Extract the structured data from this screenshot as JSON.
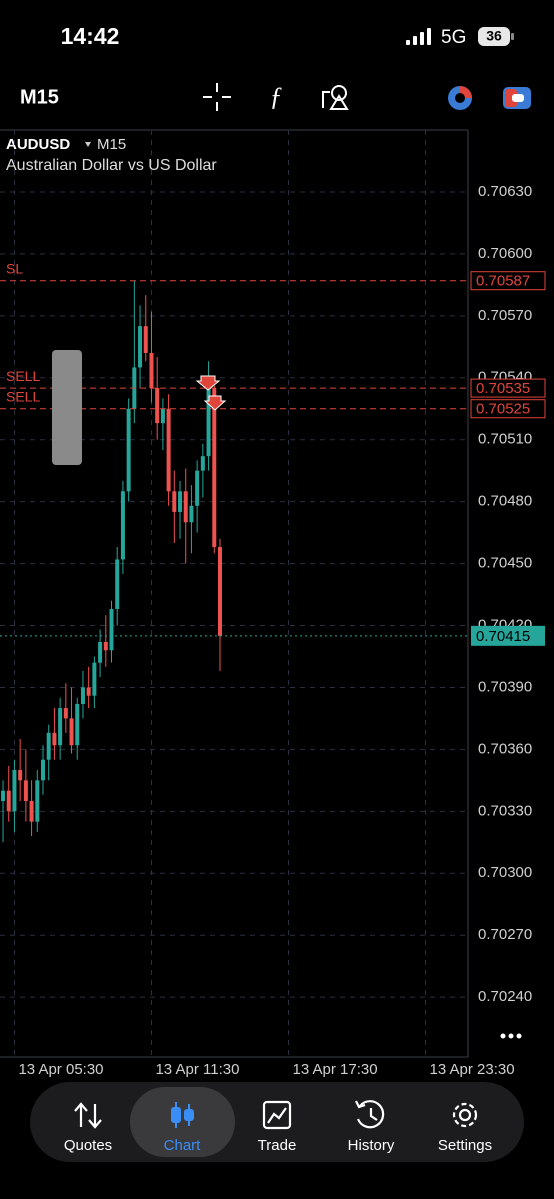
{
  "status_bar": {
    "time": "14:42",
    "network": "5G",
    "battery": "36"
  },
  "toolbar": {
    "timeframe": "M15"
  },
  "chart_data": {
    "type": "candlestick",
    "symbol": "AUDUSD",
    "timeframe": "M15",
    "description": "Australian Dollar vs US Dollar",
    "open": [
      0.70335,
      0.7034,
      0.7033,
      0.7035,
      0.70345,
      0.70335,
      0.70325,
      0.70345,
      0.70355,
      0.70368,
      0.70362,
      0.7038,
      0.70375,
      0.70362,
      0.70382,
      0.7039,
      0.70386,
      0.70402,
      0.70412,
      0.70408,
      0.70428,
      0.70452,
      0.70485,
      0.70525,
      0.70545,
      0.70565,
      0.70552,
      0.70535,
      0.70518,
      0.70525,
      0.70485,
      0.70475,
      0.70485,
      0.7047,
      0.70478,
      0.70495,
      0.70502,
      0.70535,
      0.70458
    ],
    "high": [
      0.70345,
      0.70352,
      0.70355,
      0.70365,
      0.7036,
      0.70345,
      0.7035,
      0.70362,
      0.70372,
      0.7038,
      0.70385,
      0.70392,
      0.7039,
      0.70385,
      0.70398,
      0.704,
      0.70405,
      0.70418,
      0.70425,
      0.70432,
      0.70458,
      0.7049,
      0.7053,
      0.70587,
      0.70575,
      0.7058,
      0.70572,
      0.7055,
      0.7053,
      0.70532,
      0.70495,
      0.7049,
      0.70496,
      0.70488,
      0.705,
      0.70508,
      0.70548,
      0.7054,
      0.70462
    ],
    "low": [
      0.70315,
      0.70325,
      0.7032,
      0.70335,
      0.70325,
      0.70318,
      0.7032,
      0.70338,
      0.70345,
      0.70355,
      0.70355,
      0.70368,
      0.70358,
      0.70355,
      0.70375,
      0.7038,
      0.7038,
      0.70395,
      0.704,
      0.70402,
      0.7042,
      0.70445,
      0.7048,
      0.70518,
      0.70535,
      0.70548,
      0.70528,
      0.7051,
      0.70505,
      0.70478,
      0.7046,
      0.70462,
      0.7045,
      0.70455,
      0.70465,
      0.70482,
      0.70495,
      0.70455,
      0.70398
    ],
    "close": [
      0.7034,
      0.7033,
      0.7035,
      0.70345,
      0.70335,
      0.70325,
      0.70345,
      0.70355,
      0.70368,
      0.70362,
      0.7038,
      0.70375,
      0.70362,
      0.70382,
      0.7039,
      0.70386,
      0.70402,
      0.70412,
      0.70408,
      0.70428,
      0.70452,
      0.70485,
      0.70525,
      0.70545,
      0.70565,
      0.70552,
      0.70535,
      0.70518,
      0.70525,
      0.70485,
      0.70475,
      0.70485,
      0.7047,
      0.70478,
      0.70495,
      0.70502,
      0.70535,
      0.70458,
      0.70415
    ],
    "up_color": "#26a69a",
    "down_color": "#ef5350",
    "xlim": [
      -0.53,
      81.44
    ],
    "ylim": [
      0.70211,
      0.7066
    ],
    "xticks": [
      {
        "value": 2,
        "label": "13 Apr 05:30"
      },
      {
        "value": 26,
        "label": "13 Apr 11:30"
      },
      {
        "value": 50,
        "label": "13 Apr 17:30"
      },
      {
        "value": 74,
        "label": "13 Apr 23:30"
      }
    ],
    "yticks": [
      {
        "value": 0.7063,
        "label": "0.70630"
      },
      {
        "value": 0.706,
        "label": "0.70600"
      },
      {
        "value": 0.7057,
        "label": "0.70570"
      },
      {
        "value": 0.7054,
        "label": "0.70540"
      },
      {
        "value": 0.7051,
        "label": "0.70510"
      },
      {
        "value": 0.7048,
        "label": "0.70480"
      },
      {
        "value": 0.7045,
        "label": "0.70450"
      },
      {
        "value": 0.7042,
        "label": "0.70420"
      },
      {
        "value": 0.7039,
        "label": "0.70390"
      },
      {
        "value": 0.7036,
        "label": "0.70360"
      },
      {
        "value": 0.7033,
        "label": "0.70330"
      },
      {
        "value": 0.703,
        "label": "0.70300"
      },
      {
        "value": 0.7027,
        "label": "0.70270"
      },
      {
        "value": 0.7024,
        "label": "0.70240"
      }
    ],
    "grid": true,
    "orders": [
      {
        "label": "SL",
        "value": 0.70587
      },
      {
        "label": "SELL",
        "value": 0.70535
      },
      {
        "label": "SELL",
        "value": 0.70525
      }
    ],
    "order_color": "#e0453c",
    "bid": 0.70415,
    "bid_color": "#26a69a"
  },
  "tab_bar": {
    "tabs": [
      "Quotes",
      "Chart",
      "Trade",
      "History",
      "Settings"
    ],
    "active": "Chart"
  }
}
